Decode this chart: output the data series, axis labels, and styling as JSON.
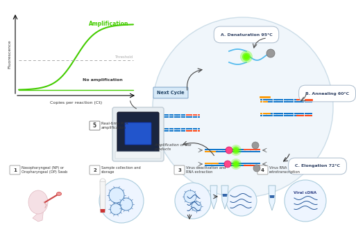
{
  "bg_color": "#ffffff",
  "graph": {
    "xlabel": "Copies per reaction (Ct)",
    "ylabel": "Fluorescence",
    "amplification_label": "Amplification",
    "threshold_label": "Threshold",
    "no_amplification_label": "No amplification",
    "curve_color": "#44cc00",
    "threshold_color": "#aaaaaa",
    "flat_color": "#44cc00"
  },
  "steps": [
    {
      "num": "1",
      "label": "Nasopharyngeal (NP) or\nOropharyngeal (OP) Swab"
    },
    {
      "num": "2",
      "label": "Sample collection and\nstorage"
    },
    {
      "num": "3",
      "label": "Virus deactivation and\nRNA extraction"
    },
    {
      "num": "4",
      "label": "Virus RNA\nretrotranscription"
    },
    {
      "num": "5",
      "label": "Real-time PCR\namplification"
    }
  ],
  "pcr_cycle": {
    "denaturation": "A. Denaturation 95°C",
    "annealing": "B. Annealing 60°C",
    "elongation": "C. Elongation 72°C",
    "next_cycle": "Next Cycle",
    "amplification": "Amplification of the\nproducts"
  },
  "viral_cdna": "Viral cDNA"
}
